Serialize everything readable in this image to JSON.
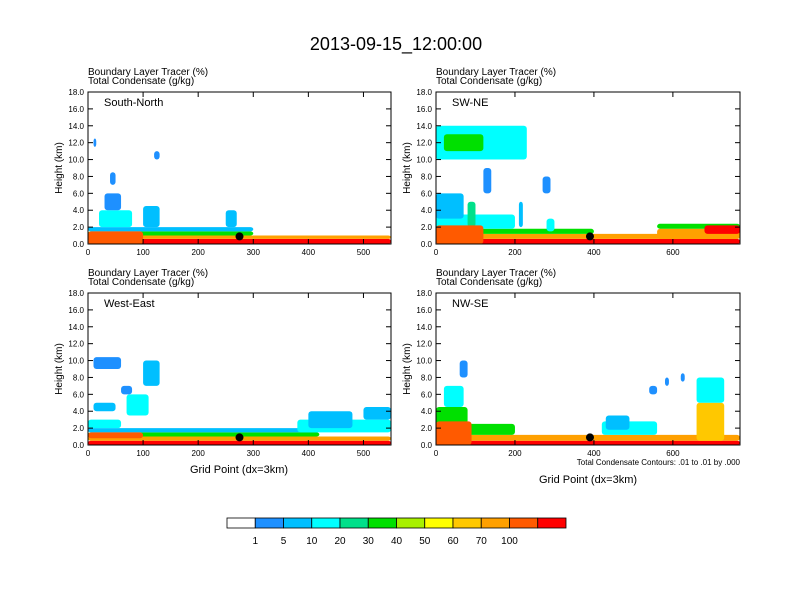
{
  "title": "2013-09-15_12:00:00",
  "fill_label": "Boundary Layer Tracer   (%)",
  "contour_label": "Total Condensate   (g/kg)",
  "ylabel": "Height (km)",
  "xlabel": "Grid Point (dx=3km)",
  "contour_note": "Total Condensate Contours: .01 to .01 by .000",
  "colorbar": {
    "labels": [
      "1",
      "5",
      "10",
      "20",
      "30",
      "40",
      "50",
      "60",
      "70",
      "100"
    ],
    "colors": [
      "#ffffff",
      "#1e90ff",
      "#00bfff",
      "#00ffff",
      "#00e08a",
      "#00e000",
      "#a8f000",
      "#ffff00",
      "#ffc800",
      "#ffa000",
      "#ff5a00",
      "#ff0000"
    ]
  },
  "chart_data": [
    {
      "type": "heatmap",
      "panel": "South-North",
      "ylim": [
        0,
        18
      ],
      "xlim": [
        0,
        550
      ],
      "xticks": [
        0,
        100,
        200,
        300,
        400,
        500
      ],
      "yticks": [
        "0.0",
        "2.0",
        "4.0",
        "6.0",
        "8.0",
        "10.0",
        "12.0",
        "14.0",
        "16.0",
        "18.0"
      ],
      "marker_x": 275
    },
    {
      "type": "heatmap",
      "panel": "SW-NE",
      "ylim": [
        0,
        18
      ],
      "xlim": [
        0,
        770
      ],
      "xticks": [
        0,
        200,
        400,
        600
      ],
      "yticks": [
        "0.0",
        "2.0",
        "4.0",
        "6.0",
        "8.0",
        "10.0",
        "12.0",
        "14.0",
        "16.0",
        "18.0"
      ],
      "marker_x": 390
    },
    {
      "type": "heatmap",
      "panel": "West-East",
      "ylim": [
        0,
        18
      ],
      "xlim": [
        0,
        550
      ],
      "xticks": [
        0,
        100,
        200,
        300,
        400,
        500
      ],
      "yticks": [
        "0.0",
        "2.0",
        "4.0",
        "6.0",
        "8.0",
        "10.0",
        "12.0",
        "14.0",
        "16.0",
        "18.0"
      ],
      "marker_x": 275
    },
    {
      "type": "heatmap",
      "panel": "NW-SE",
      "ylim": [
        0,
        18
      ],
      "xlim": [
        0,
        770
      ],
      "xticks": [
        0,
        200,
        400,
        600
      ],
      "yticks": [
        "0.0",
        "2.0",
        "4.0",
        "6.0",
        "8.0",
        "10.0",
        "12.0",
        "14.0",
        "16.0",
        "18.0"
      ],
      "marker_x": 390
    }
  ]
}
